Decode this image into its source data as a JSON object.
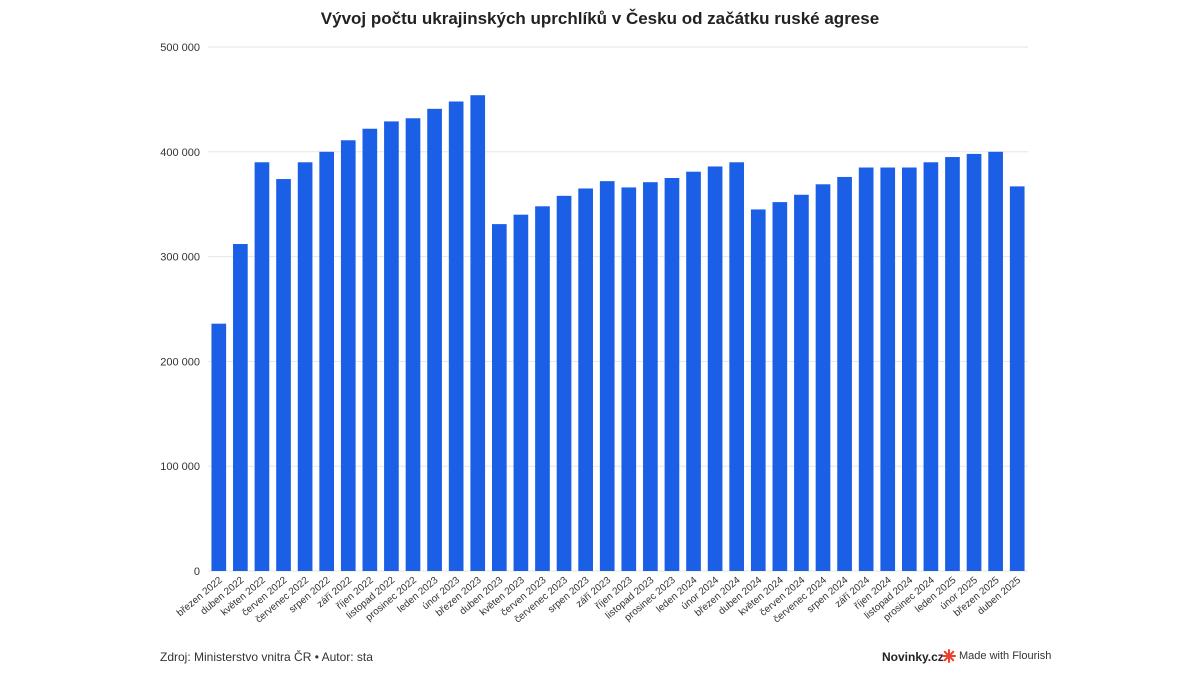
{
  "chart_data": {
    "type": "bar",
    "title": "Vývoj počtu ukrajinských uprchlíků v Česku od začátku ruské agrese",
    "xlabel": "",
    "ylabel": "",
    "ylim": [
      0,
      500000
    ],
    "yticks": [
      0,
      100000,
      200000,
      300000,
      400000,
      500000
    ],
    "ytick_labels": [
      "0",
      "100 000",
      "200 000",
      "300 000",
      "400 000",
      "500 000"
    ],
    "grid": true,
    "color": "#1a5fe6",
    "categories": [
      "březen 2022",
      "duben 2022",
      "květen 2022",
      "červen 2022",
      "červenec 2022",
      "srpen 2022",
      "září 2022",
      "říjen 2022",
      "listopad 2022",
      "prosinec 2022",
      "leden 2023",
      "únor 2023",
      "březen 2023",
      "duben 2023",
      "květen 2023",
      "červen 2023",
      "červenec 2023",
      "srpen 2023",
      "září 2023",
      "říjen 2023",
      "listopad 2023",
      "prosinec 2023",
      "leden 2024",
      "únor 2024",
      "březen 2024",
      "duben 2024",
      "květen 2024",
      "červen 2024",
      "červenec 2024",
      "srpen 2024",
      "září 2024",
      "říjen 2024",
      "listopad 2024",
      "prosinec 2024",
      "leden 2025",
      "únor 2025",
      "březen 2025",
      "duben 2025"
    ],
    "values": [
      236000,
      312000,
      390000,
      374000,
      390000,
      400000,
      411000,
      422000,
      429000,
      432000,
      441000,
      448000,
      454000,
      331000,
      340000,
      348000,
      358000,
      365000,
      372000,
      366000,
      371000,
      375000,
      381000,
      386000,
      390000,
      345000,
      352000,
      359000,
      369000,
      376000,
      385000,
      385000,
      385000,
      390000,
      395000,
      398000,
      400000,
      367000
    ]
  },
  "footer": {
    "source": "Zdroj: Ministerstvo vnitra ČR • Autor: sta",
    "brand": "Novinky.cz",
    "flourish": "Made with Flourish"
  },
  "colors": {
    "bar": "#1a5fe6",
    "grid": "#e6e6e6",
    "flourish_icon": "#e8412c"
  },
  "icons": {
    "flourish": "flourish-logo-icon"
  }
}
